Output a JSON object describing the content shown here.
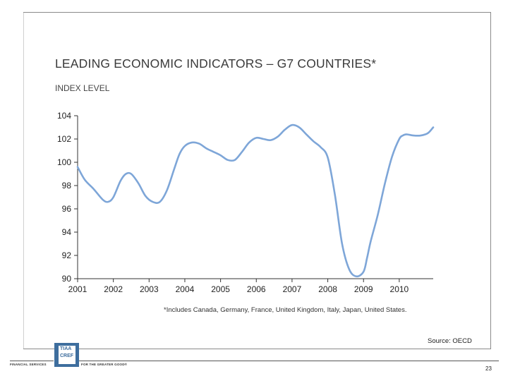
{
  "slide": {
    "title": "LEADING ECONOMIC INDICATORS – G7 COUNTRIES*",
    "subtitle": "INDEX LEVEL",
    "footnote": "*Includes Canada, Germany, France, United Kingdom, Italy, Japan, United States.",
    "source": "Source: OECD",
    "page_number": "23",
    "logo_line1": "TIAA",
    "logo_line2": "CREF",
    "tagline_left": "FINANCIAL SERVICES",
    "tagline_right": "FOR THE GREATER GOOD®"
  },
  "colors": {
    "line": "#7ea6d8",
    "axis": "#333333",
    "logo": "#3e6e9e"
  },
  "chart_data": {
    "type": "line",
    "title": "LEADING ECONOMIC INDICATORS – G7 COUNTRIES*",
    "ylabel": "INDEX LEVEL",
    "xlabel": "",
    "ylim": [
      90,
      104
    ],
    "xlim": [
      2001.0,
      2010.95
    ],
    "yticks": [
      90,
      92,
      94,
      96,
      98,
      100,
      102,
      104
    ],
    "xticks": [
      "2001",
      "2002",
      "2003",
      "2004",
      "2005",
      "2006",
      "2007",
      "2008",
      "2009",
      "2010"
    ],
    "grid": false,
    "series": [
      {
        "x": [
          2001.0,
          2001.2,
          2001.45,
          2001.7,
          2001.85,
          2002.0,
          2002.2,
          2002.35,
          2002.5,
          2002.7,
          2002.9,
          2003.1,
          2003.3,
          2003.5,
          2003.7,
          2003.85,
          2004.0,
          2004.2,
          2004.4,
          2004.6,
          2004.8,
          2005.0,
          2005.2,
          2005.4,
          2005.6,
          2005.8,
          2006.0,
          2006.2,
          2006.4,
          2006.6,
          2006.8,
          2007.0,
          2007.2,
          2007.4,
          2007.6,
          2007.8,
          2008.0,
          2008.2,
          2008.4,
          2008.6,
          2008.8,
          2009.0,
          2009.1,
          2009.2,
          2009.4,
          2009.6,
          2009.8,
          2010.0,
          2010.1,
          2010.2,
          2010.4,
          2010.6,
          2010.8,
          2010.95
        ],
        "y": [
          99.6,
          98.5,
          97.7,
          96.8,
          96.6,
          97.0,
          98.4,
          99.0,
          99.0,
          98.2,
          97.1,
          96.6,
          96.6,
          97.6,
          99.4,
          100.7,
          101.4,
          101.7,
          101.6,
          101.2,
          100.9,
          100.6,
          100.2,
          100.2,
          100.9,
          101.7,
          102.1,
          102.0,
          101.9,
          102.2,
          102.8,
          103.2,
          103.0,
          102.4,
          101.8,
          101.3,
          100.4,
          97.2,
          93.0,
          90.8,
          90.2,
          90.6,
          91.8,
          93.2,
          95.5,
          98.2,
          100.5,
          102.0,
          102.3,
          102.4,
          102.3,
          102.3,
          102.5,
          103.0
        ]
      }
    ]
  }
}
